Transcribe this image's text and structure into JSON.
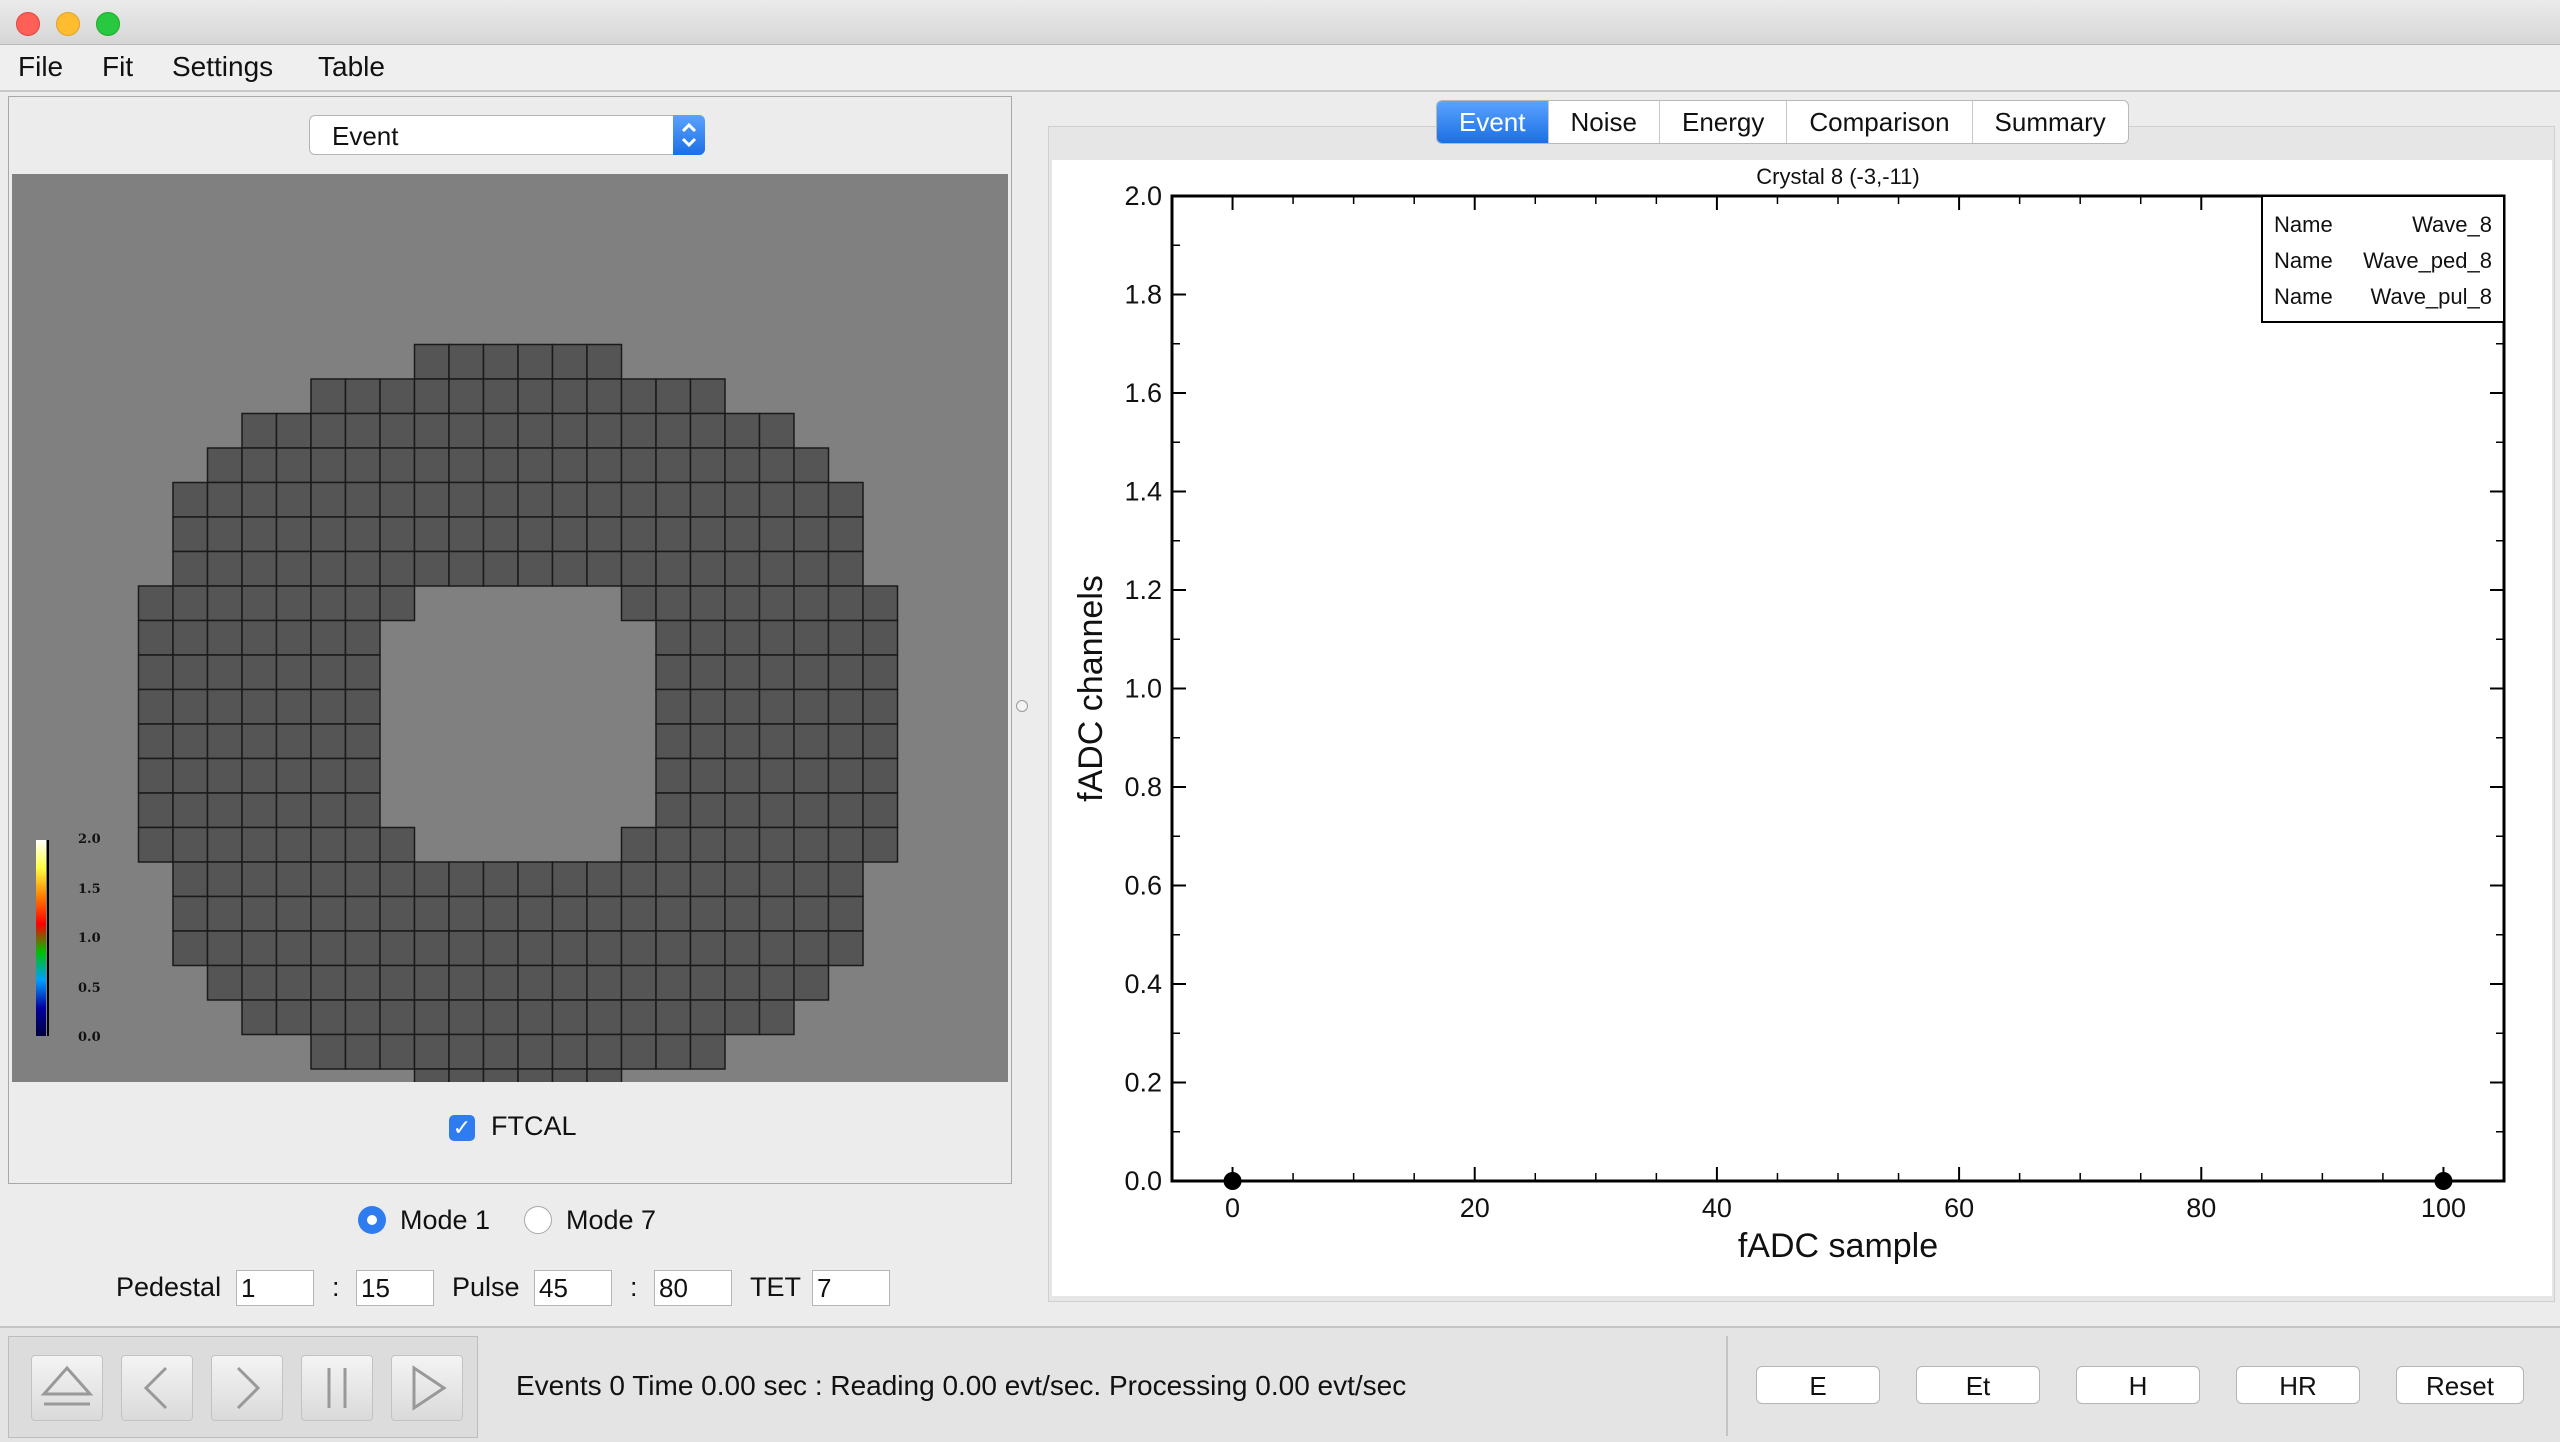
{
  "menu": [
    "File",
    "Fit",
    "Settings",
    "Table"
  ],
  "left": {
    "view_select": "Event",
    "colorbar_ticks": [
      "2.0",
      "1.5",
      "1.0",
      "0.5",
      "0.0"
    ],
    "detector_label": "FTCAL",
    "mode1_label": "Mode 1",
    "mode7_label": "Mode 7",
    "pedestal_label": "Pedestal",
    "pedestal_from": "1",
    "pedestal_to": "15",
    "pulse_label": "Pulse",
    "pulse_from": "45",
    "pulse_to": "80",
    "tet_label": "TET",
    "tet_value": "7",
    "sep": ":"
  },
  "tabs": [
    "Event",
    "Noise",
    "Energy",
    "Comparison",
    "Summary"
  ],
  "chart_data": {
    "type": "scatter",
    "title": "Crystal 8 (-3,-11)",
    "xlabel": "fADC sample",
    "ylabel": "fADC channels",
    "xlim": [
      -5,
      105
    ],
    "ylim": [
      0,
      2
    ],
    "x_ticks": [
      0,
      20,
      40,
      60,
      80,
      100
    ],
    "y_ticks": [
      0.0,
      0.2,
      0.4,
      0.6,
      0.8,
      1.0,
      1.2,
      1.4,
      1.6,
      1.8,
      2.0
    ],
    "points": [
      {
        "x": 0,
        "y": 0
      },
      {
        "x": 100,
        "y": 0
      }
    ],
    "legend": [
      {
        "key": "Name",
        "value": "Wave_8"
      },
      {
        "key": "Name",
        "value": "Wave_ped_8"
      },
      {
        "key": "Name",
        "value": "Wave_pul_8"
      }
    ],
    "legend_position": "top-right"
  },
  "status": {
    "text": "Events 0  Time 0.00 sec : Reading 0.00  evt/sec. Processing 0.00 evt/sec",
    "buttons": [
      "E",
      "Et",
      "H",
      "HR",
      "Reset"
    ]
  },
  "colors": {
    "accent": "#1c6fe4",
    "canvas": "#808080",
    "crystal": "#555555"
  }
}
